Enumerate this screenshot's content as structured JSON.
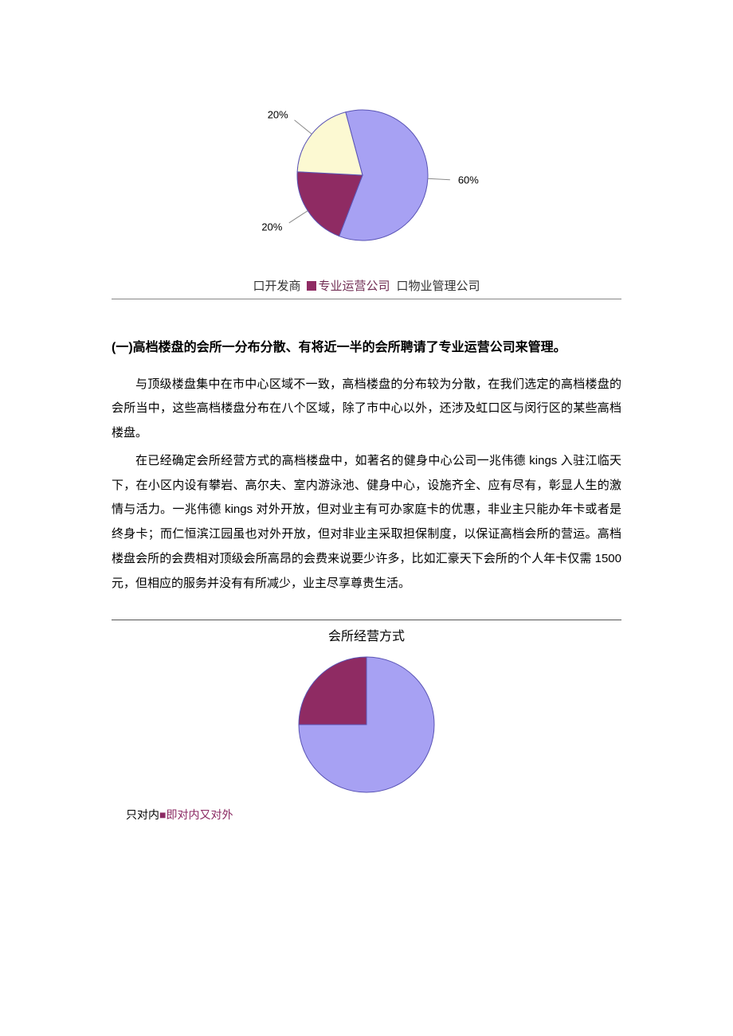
{
  "chart1": {
    "type": "pie",
    "slices": [
      {
        "label": "60%",
        "value": 60,
        "color": "#a7a1f3"
      },
      {
        "label": "20%",
        "value": 20,
        "color": "#8f2b63"
      },
      {
        "label": "20%",
        "value": 20,
        "color": "#fcf9d2"
      }
    ],
    "stroke": "#5a54b5",
    "label_fontsize": 13,
    "label_color": "#000000",
    "leader_color": "#8a8a8a",
    "start_angle_deg": -90,
    "rotation_offset_deg": -15
  },
  "legend1": {
    "items": [
      {
        "mark": "口",
        "label": "开发商",
        "swatch": "#a7a1f3",
        "text_color": "#333333"
      },
      {
        "mark": "■",
        "label": "专业运营公司",
        "swatch": "#8f2b63",
        "text_color": "#7a3557"
      },
      {
        "mark": "口",
        "label": "物业管理公司",
        "swatch": "#fcf9d2",
        "text_color": "#333333"
      }
    ]
  },
  "section": {
    "title": "(一)高档楼盘的会所一分布分散、有将近一半的会所聘请了专业运营公司来管理。",
    "paragraphs": [
      "与顶级楼盘集中在市中心区域不一致，高档楼盘的分布较为分散，在我们选定的高档楼盘的会所当中，这些高档楼盘分布在八个区域，除了市中心以外，还涉及虹口区与闵行区的某些高档楼盘。",
      "在已经确定会所经营方式的高档楼盘中，如著名的健身中心公司一兆伟德 kings 入驻江临天下，在小区内设有攀岩、高尔夫、室内游泳池、健身中心，设施齐全、应有尽有，彰显人生的激情与活力。一兆伟德 kings 对外开放，但对业主有可办家庭卡的优惠，非业主只能办年卡或者是终身卡；而仁恒滨江园虽也对外开放，但对非业主采取担保制度，以保证高档会所的营运。高档楼盘会所的会费相对顶级会所高昂的会费来说要少许多，比如汇豪天下会所的个人年卡仅需 1500 元，但相应的服务并没有有所减少，业主尽享尊贵生活。"
    ]
  },
  "chart2": {
    "type": "pie",
    "title": "会所经营方式",
    "slices": [
      {
        "value": 75,
        "color": "#a7a1f3"
      },
      {
        "value": 25,
        "color": "#8f2b63"
      }
    ],
    "stroke": "#5a54b5",
    "start_angle_deg": -90,
    "rotation_offset_deg": 0
  },
  "legend2": {
    "prefix_inner": "只对内",
    "mark_both": "■",
    "label_both": "即对内又对外"
  }
}
